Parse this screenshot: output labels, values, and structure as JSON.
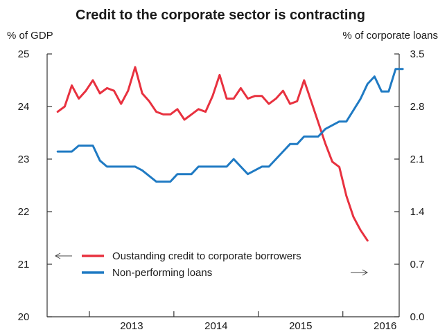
{
  "chart_data": {
    "type": "line",
    "title": "Credit to the corporate sector is contracting",
    "left_axis": {
      "unit": "% of GDP",
      "ylim": [
        20,
        25
      ],
      "ticks": [
        "20",
        "21",
        "22",
        "23",
        "24",
        "25"
      ]
    },
    "right_axis": {
      "unit": "% of corporate loans",
      "ylim": [
        0.0,
        3.5
      ],
      "ticks": [
        "0.0",
        "0.7",
        "1.4",
        "2.1",
        "2.8",
        "3.5"
      ]
    },
    "x_axis": {
      "range": [
        "2012-07",
        "2016-06"
      ],
      "tick_labels": [
        "2013",
        "2014",
        "2015",
        "2016"
      ]
    },
    "grid": false,
    "legend": {
      "placement": "bottom-center"
    },
    "series": [
      {
        "name": "Oustanding credit to corporate borrowers",
        "axis": "left",
        "color": "#e8313f",
        "arrow": "left",
        "points": [
          [
            "2012-08",
            23.9
          ],
          [
            "2012-09",
            24.0
          ],
          [
            "2012-10",
            24.4
          ],
          [
            "2012-11",
            24.15
          ],
          [
            "2012-12",
            24.3
          ],
          [
            "2013-01",
            24.5
          ],
          [
            "2013-02",
            24.25
          ],
          [
            "2013-03",
            24.35
          ],
          [
            "2013-04",
            24.3
          ],
          [
            "2013-05",
            24.05
          ],
          [
            "2013-06",
            24.3
          ],
          [
            "2013-07",
            24.75
          ],
          [
            "2013-08",
            24.25
          ],
          [
            "2013-09",
            24.1
          ],
          [
            "2013-10",
            23.9
          ],
          [
            "2013-11",
            23.85
          ],
          [
            "2013-12",
            23.85
          ],
          [
            "2014-01",
            23.95
          ],
          [
            "2014-02",
            23.75
          ],
          [
            "2014-03",
            23.85
          ],
          [
            "2014-04",
            23.95
          ],
          [
            "2014-05",
            23.9
          ],
          [
            "2014-06",
            24.2
          ],
          [
            "2014-07",
            24.6
          ],
          [
            "2014-08",
            24.15
          ],
          [
            "2014-09",
            24.15
          ],
          [
            "2014-10",
            24.35
          ],
          [
            "2014-11",
            24.15
          ],
          [
            "2014-12",
            24.2
          ],
          [
            "2015-01",
            24.2
          ],
          [
            "2015-02",
            24.05
          ],
          [
            "2015-03",
            24.15
          ],
          [
            "2015-04",
            24.3
          ],
          [
            "2015-05",
            24.05
          ],
          [
            "2015-06",
            24.1
          ],
          [
            "2015-07",
            24.5
          ],
          [
            "2015-08",
            24.1
          ],
          [
            "2015-09",
            23.7
          ],
          [
            "2015-10",
            23.3
          ],
          [
            "2015-11",
            22.95
          ],
          [
            "2015-12",
            22.85
          ],
          [
            "2016-01",
            22.3
          ],
          [
            "2016-02",
            21.9
          ],
          [
            "2016-03",
            21.65
          ],
          [
            "2016-04",
            21.45
          ]
        ]
      },
      {
        "name": "Non-performing loans",
        "axis": "right",
        "color": "#1f7ac3",
        "arrow": "right",
        "points": [
          [
            "2012-08",
            2.2
          ],
          [
            "2012-10",
            2.2
          ],
          [
            "2012-11",
            2.28
          ],
          [
            "2013-01",
            2.28
          ],
          [
            "2013-02",
            2.08
          ],
          [
            "2013-03",
            2.0
          ],
          [
            "2013-07",
            2.0
          ],
          [
            "2013-08",
            1.95
          ],
          [
            "2013-10",
            1.8
          ],
          [
            "2013-12",
            1.8
          ],
          [
            "2014-01",
            1.9
          ],
          [
            "2014-03",
            1.9
          ],
          [
            "2014-04",
            2.0
          ],
          [
            "2014-08",
            2.0
          ],
          [
            "2014-09",
            2.1
          ],
          [
            "2014-10",
            2.0
          ],
          [
            "2014-11",
            1.9
          ],
          [
            "2015-01",
            2.0
          ],
          [
            "2015-02",
            2.0
          ],
          [
            "2015-04",
            2.2
          ],
          [
            "2015-05",
            2.3
          ],
          [
            "2015-06",
            2.3
          ],
          [
            "2015-07",
            2.4
          ],
          [
            "2015-09",
            2.4
          ],
          [
            "2015-10",
            2.5
          ],
          [
            "2015-12",
            2.6
          ],
          [
            "2016-01",
            2.6
          ],
          [
            "2016-03",
            2.9
          ],
          [
            "2016-04",
            3.1
          ],
          [
            "2016-05",
            3.2
          ],
          [
            "2016-06",
            3.0
          ],
          [
            "2016-07",
            3.0
          ],
          [
            "2016-08",
            3.3
          ],
          [
            "2016-09",
            3.3
          ]
        ]
      }
    ]
  }
}
